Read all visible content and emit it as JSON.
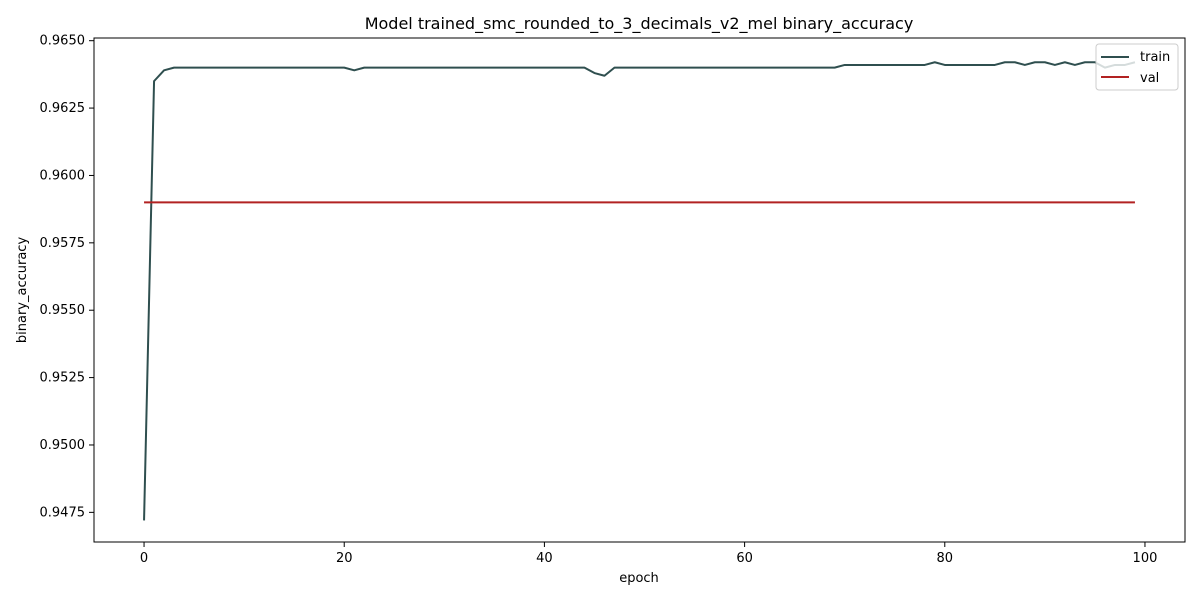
{
  "chart_data": {
    "type": "line",
    "title": "Model trained_smc_rounded_to_3_decimals_v2_mel binary_accuracy",
    "xlabel": "epoch",
    "ylabel": "binary_accuracy",
    "xlim": [
      -5,
      104
    ],
    "ylim": [
      0.9464,
      0.9651
    ],
    "xticks": [
      0,
      20,
      40,
      60,
      80,
      100
    ],
    "xtick_labels": [
      "0",
      "20",
      "40",
      "60",
      "80",
      "100"
    ],
    "yticks": [
      0.9475,
      0.95,
      0.9525,
      0.955,
      0.9575,
      0.96,
      0.9625,
      0.965
    ],
    "ytick_labels": [
      "0.9475",
      "0.9500",
      "0.9525",
      "0.9550",
      "0.9575",
      "0.9600",
      "0.9625",
      "0.9650"
    ],
    "grid": false,
    "legend_position": "top-right",
    "series": [
      {
        "name": "train",
        "color": "#2f4f4f",
        "x": [
          0,
          1,
          2,
          3,
          4,
          5,
          6,
          7,
          8,
          9,
          10,
          11,
          12,
          13,
          14,
          15,
          16,
          17,
          18,
          19,
          20,
          21,
          22,
          23,
          24,
          25,
          26,
          27,
          28,
          29,
          30,
          31,
          32,
          33,
          34,
          35,
          36,
          37,
          38,
          39,
          40,
          41,
          42,
          43,
          44,
          45,
          46,
          47,
          48,
          49,
          50,
          51,
          52,
          53,
          54,
          55,
          56,
          57,
          58,
          59,
          60,
          61,
          62,
          63,
          64,
          65,
          66,
          67,
          68,
          69,
          70,
          71,
          72,
          73,
          74,
          75,
          76,
          77,
          78,
          79,
          80,
          81,
          82,
          83,
          84,
          85,
          86,
          87,
          88,
          89,
          90,
          91,
          92,
          93,
          94,
          95,
          96,
          97,
          98,
          99
        ],
        "values": [
          0.9472,
          0.9635,
          0.9639,
          0.964,
          0.964,
          0.964,
          0.964,
          0.964,
          0.964,
          0.964,
          0.964,
          0.964,
          0.964,
          0.964,
          0.964,
          0.964,
          0.964,
          0.964,
          0.964,
          0.964,
          0.964,
          0.9639,
          0.964,
          0.964,
          0.964,
          0.964,
          0.964,
          0.964,
          0.964,
          0.964,
          0.964,
          0.964,
          0.964,
          0.964,
          0.964,
          0.964,
          0.964,
          0.964,
          0.964,
          0.964,
          0.964,
          0.964,
          0.964,
          0.964,
          0.964,
          0.9638,
          0.9637,
          0.964,
          0.964,
          0.964,
          0.964,
          0.964,
          0.964,
          0.964,
          0.964,
          0.964,
          0.964,
          0.964,
          0.964,
          0.964,
          0.964,
          0.964,
          0.964,
          0.964,
          0.964,
          0.964,
          0.964,
          0.964,
          0.964,
          0.964,
          0.9641,
          0.9641,
          0.9641,
          0.9641,
          0.9641,
          0.9641,
          0.9641,
          0.9641,
          0.9641,
          0.9642,
          0.9641,
          0.9641,
          0.9641,
          0.9641,
          0.9641,
          0.9641,
          0.9642,
          0.9642,
          0.9641,
          0.9642,
          0.9642,
          0.9641,
          0.9642,
          0.9641,
          0.9642,
          0.9642,
          0.964,
          0.9641,
          0.9641,
          0.9642
        ]
      },
      {
        "name": "val",
        "color": "#b22222",
        "x": [
          0,
          1,
          2,
          3,
          4,
          5,
          6,
          7,
          8,
          9,
          10,
          11,
          12,
          13,
          14,
          15,
          16,
          17,
          18,
          19,
          20,
          21,
          22,
          23,
          24,
          25,
          26,
          27,
          28,
          29,
          30,
          31,
          32,
          33,
          34,
          35,
          36,
          37,
          38,
          39,
          40,
          41,
          42,
          43,
          44,
          45,
          46,
          47,
          48,
          49,
          50,
          51,
          52,
          53,
          54,
          55,
          56,
          57,
          58,
          59,
          60,
          61,
          62,
          63,
          64,
          65,
          66,
          67,
          68,
          69,
          70,
          71,
          72,
          73,
          74,
          75,
          76,
          77,
          78,
          79,
          80,
          81,
          82,
          83,
          84,
          85,
          86,
          87,
          88,
          89,
          90,
          91,
          92,
          93,
          94,
          95,
          96,
          97,
          98,
          99
        ],
        "values": [
          0.959,
          0.959,
          0.959,
          0.959,
          0.959,
          0.959,
          0.959,
          0.959,
          0.959,
          0.959,
          0.959,
          0.959,
          0.959,
          0.959,
          0.959,
          0.959,
          0.959,
          0.959,
          0.959,
          0.959,
          0.959,
          0.959,
          0.959,
          0.959,
          0.959,
          0.959,
          0.959,
          0.959,
          0.959,
          0.959,
          0.959,
          0.959,
          0.959,
          0.959,
          0.959,
          0.959,
          0.959,
          0.959,
          0.959,
          0.959,
          0.959,
          0.959,
          0.959,
          0.959,
          0.959,
          0.959,
          0.959,
          0.959,
          0.959,
          0.959,
          0.959,
          0.959,
          0.959,
          0.959,
          0.959,
          0.959,
          0.959,
          0.959,
          0.959,
          0.959,
          0.959,
          0.959,
          0.959,
          0.959,
          0.959,
          0.959,
          0.959,
          0.959,
          0.959,
          0.959,
          0.959,
          0.959,
          0.959,
          0.959,
          0.959,
          0.959,
          0.959,
          0.959,
          0.959,
          0.959,
          0.959,
          0.959,
          0.959,
          0.959,
          0.959,
          0.959,
          0.959,
          0.959,
          0.959,
          0.959,
          0.959,
          0.959,
          0.959,
          0.959,
          0.959,
          0.959,
          0.959,
          0.959,
          0.959,
          0.959
        ]
      }
    ]
  }
}
